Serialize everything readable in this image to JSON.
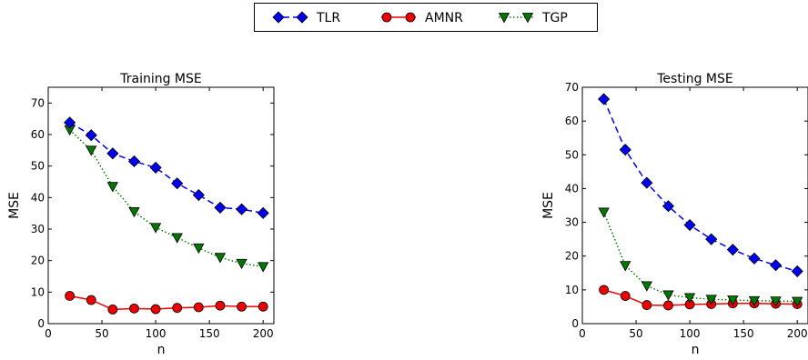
{
  "legend": {
    "placement": "top-center",
    "entries": [
      {
        "label": "TLR",
        "color": "#0000ee",
        "marker": "diamond",
        "line": "dashed"
      },
      {
        "label": "AMNR",
        "color": "#ee0000",
        "marker": "circle",
        "line": "solid"
      },
      {
        "label": "TGP",
        "color": "#007700",
        "marker": "triangle-down",
        "line": "dotted"
      }
    ]
  },
  "chart_data": [
    {
      "type": "line",
      "title": "Training MSE",
      "xlabel": "n",
      "ylabel": "MSE",
      "xlim": [
        0,
        210
      ],
      "ylim": [
        0,
        75
      ],
      "xticks": [
        0,
        50,
        100,
        150,
        200
      ],
      "yticks": [
        0,
        10,
        20,
        30,
        40,
        50,
        60,
        70
      ],
      "x": [
        20,
        40,
        60,
        80,
        100,
        120,
        140,
        160,
        180,
        200
      ],
      "series": [
        {
          "name": "TLR",
          "values": [
            63.8,
            59.8,
            54.0,
            51.5,
            49.5,
            44.5,
            40.8,
            36.8,
            36.3,
            35.1
          ]
        },
        {
          "name": "AMNR",
          "values": [
            8.8,
            7.5,
            4.5,
            4.8,
            4.6,
            5.0,
            5.2,
            5.7,
            5.4,
            5.4
          ]
        },
        {
          "name": "TGP",
          "values": [
            61.5,
            55.0,
            43.5,
            35.5,
            30.5,
            27.3,
            24.0,
            21.0,
            19.1,
            18.1
          ]
        }
      ]
    },
    {
      "type": "line",
      "title": "Testing MSE",
      "xlabel": "n",
      "ylabel": "MSE",
      "xlim": [
        0,
        210
      ],
      "ylim": [
        0,
        70
      ],
      "xticks": [
        0,
        50,
        100,
        150,
        200
      ],
      "yticks": [
        0,
        10,
        20,
        30,
        40,
        50,
        60,
        70
      ],
      "x": [
        20,
        40,
        60,
        80,
        100,
        120,
        140,
        160,
        180,
        200
      ],
      "series": [
        {
          "name": "TLR",
          "values": [
            66.5,
            51.5,
            41.7,
            34.8,
            29.2,
            25.0,
            21.9,
            19.3,
            17.3,
            15.5
          ]
        },
        {
          "name": "AMNR",
          "values": [
            10.0,
            8.2,
            5.5,
            5.4,
            5.7,
            5.8,
            6.0,
            6.0,
            5.9,
            5.8
          ]
        },
        {
          "name": "TGP",
          "values": [
            33.0,
            17.2,
            11.2,
            8.5,
            7.7,
            7.2,
            7.0,
            6.8,
            6.7,
            6.6
          ]
        }
      ]
    }
  ]
}
